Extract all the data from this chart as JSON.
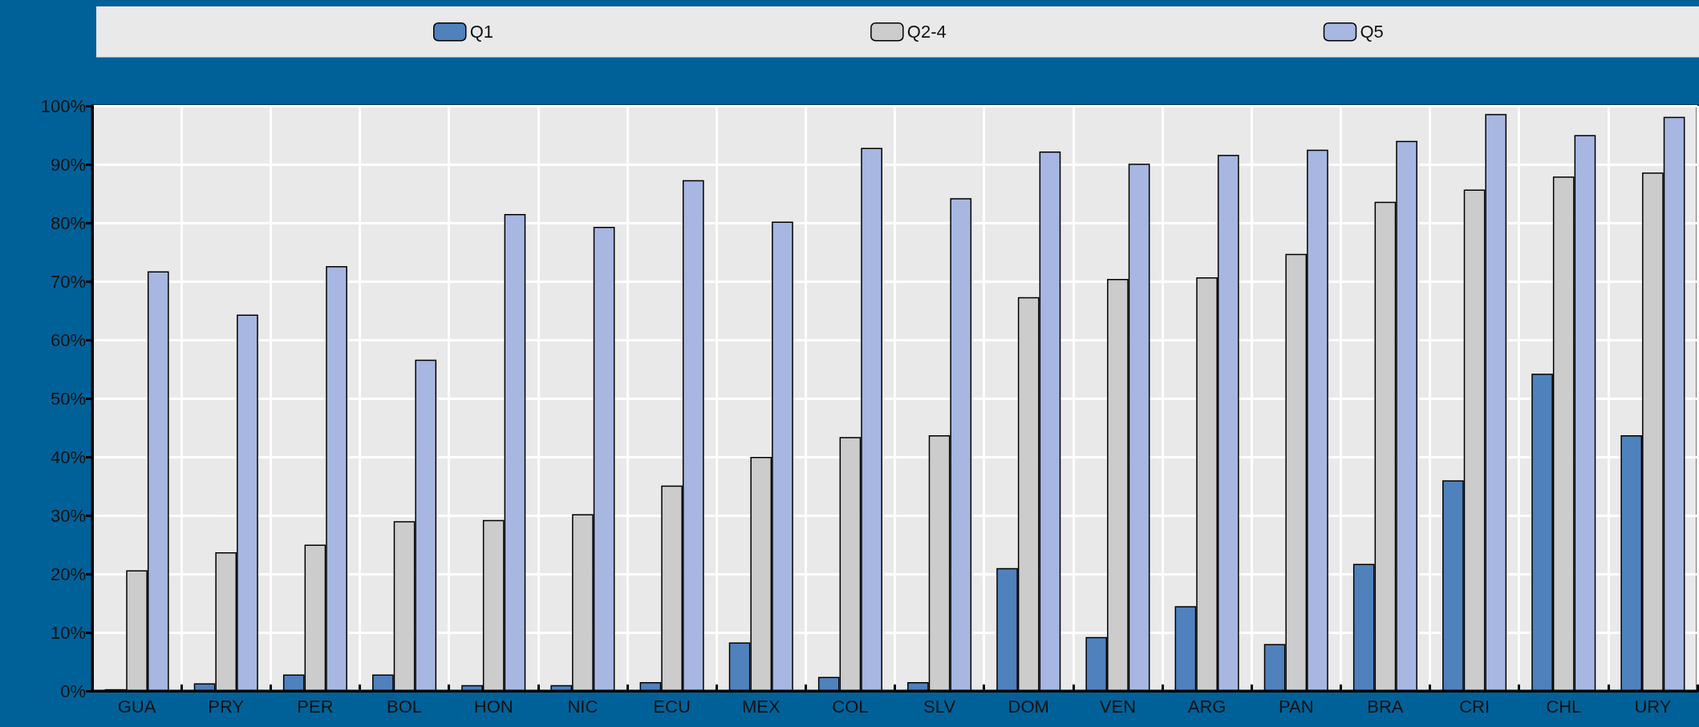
{
  "chart_data": {
    "type": "bar",
    "categories": [
      "GUA",
      "PRY",
      "PER",
      "BOL",
      "HON",
      "NIC",
      "ECU",
      "MEX",
      "COL",
      "SLV",
      "DOM",
      "VEN",
      "ARG",
      "PAN",
      "BRA",
      "CRI",
      "CHL",
      "URY"
    ],
    "series": [
      {
        "name": "Q1",
        "color": "#4f81bd",
        "values": [
          0.3,
          1.3,
          2.8,
          2.8,
          1.0,
          1.0,
          1.5,
          8.3,
          2.4,
          1.5,
          21.0,
          9.2,
          14.5,
          8.0,
          21.7,
          36.0,
          54.2,
          43.7
        ]
      },
      {
        "name": "Q2-4",
        "color": "#cccccc",
        "values": [
          20.6,
          23.7,
          25.0,
          29.0,
          29.2,
          30.2,
          35.1,
          40.0,
          43.4,
          43.7,
          67.3,
          70.4,
          70.7,
          74.7,
          83.6,
          85.7,
          87.9,
          88.6
        ]
      },
      {
        "name": "Q5",
        "color": "#a7b7e2",
        "values": [
          71.7,
          64.3,
          72.6,
          56.6,
          81.5,
          79.3,
          87.3,
          80.2,
          92.8,
          84.2,
          92.2,
          90.1,
          91.6,
          92.5,
          94.0,
          98.6,
          95.0,
          98.1
        ]
      }
    ],
    "ylim": [
      0,
      100
    ],
    "yticks": [
      {
        "value": 0,
        "label": "0%"
      },
      {
        "value": 10,
        "label": "10%"
      },
      {
        "value": 20,
        "label": "20%"
      },
      {
        "value": 30,
        "label": "30%"
      },
      {
        "value": 40,
        "label": "40%"
      },
      {
        "value": 50,
        "label": "50%"
      },
      {
        "value": 60,
        "label": "60%"
      },
      {
        "value": 70,
        "label": "70%"
      },
      {
        "value": 80,
        "label": "80%"
      },
      {
        "value": 90,
        "label": "90%"
      },
      {
        "value": 100,
        "label": "100%"
      }
    ],
    "grid": true,
    "legend": "top"
  }
}
